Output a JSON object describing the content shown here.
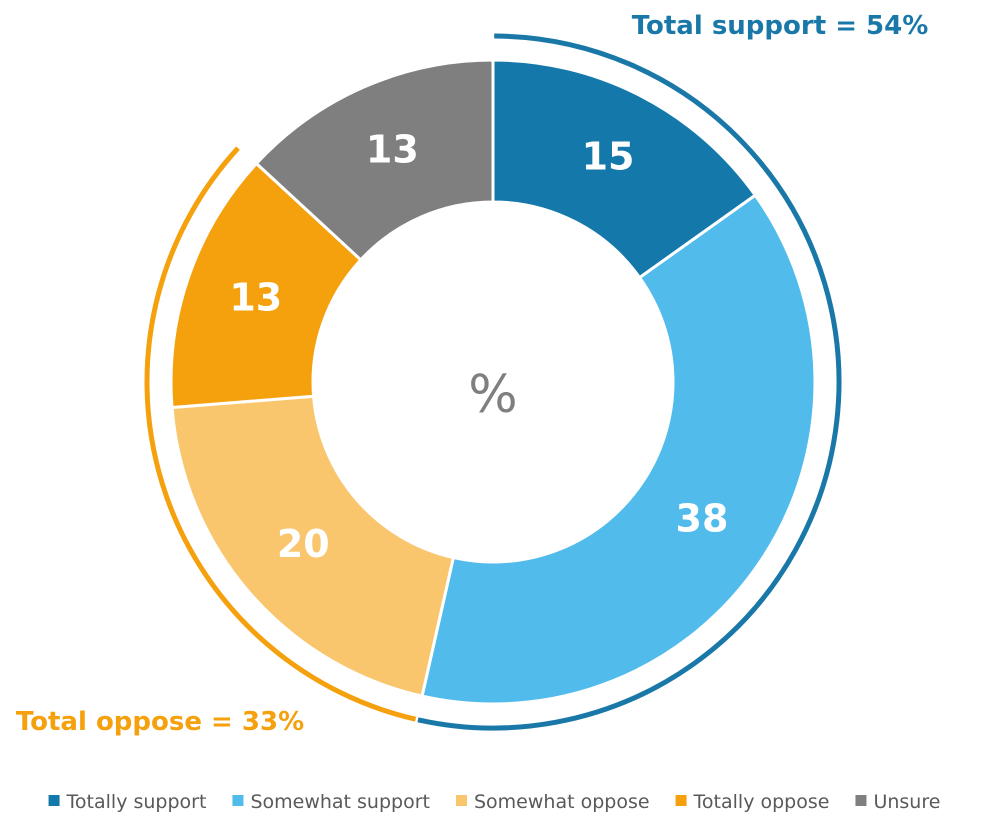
{
  "chart_data": {
    "type": "pie",
    "variant": "donut",
    "center_label": "%",
    "categories": [
      "Totally support",
      "Somewhat support",
      "Somewhat oppose",
      "Totally oppose",
      "Unsure"
    ],
    "values": [
      15,
      38,
      20,
      13,
      13
    ],
    "colors": [
      "#1479aa",
      "#51bbeb",
      "#f9c66e",
      "#f5a00d",
      "#7f7f7f"
    ],
    "legend_position": "bottom",
    "groups": [
      {
        "label": "Total support = 54%",
        "members": [
          "Totally support",
          "Somewhat support"
        ],
        "color": "#1a78a8"
      },
      {
        "label": "Total oppose = 33%",
        "members": [
          "Somewhat oppose",
          "Totally oppose"
        ],
        "color": "#f5a00d"
      }
    ]
  }
}
